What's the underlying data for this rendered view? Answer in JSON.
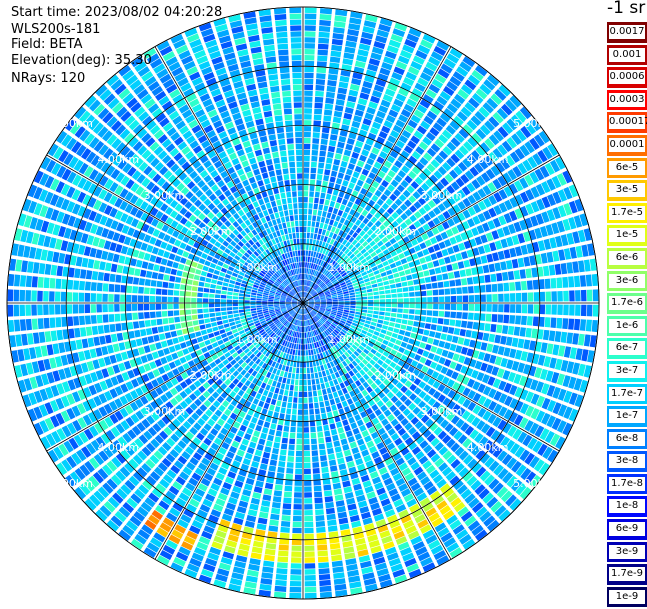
{
  "header": {
    "start_time": "Start time: 2023/08/02 04:20:28",
    "instrument": "WLS200s-181",
    "field": "Field: BETA",
    "elevation": "Elevation(deg): 35.30",
    "nrays": "NRays: 120"
  },
  "colorbar": {
    "unit": "-1 sr",
    "labels": [
      "0.0017",
      "0.001",
      "0.0006",
      "0.0003",
      "0.00017",
      "0.0001",
      "6e-5",
      "3e-5",
      "1.7e-5",
      "1e-5",
      "6e-6",
      "3e-6",
      "1.7e-6",
      "1e-6",
      "6e-7",
      "3e-7",
      "1.7e-7",
      "1e-7",
      "6e-8",
      "3e-8",
      "1.7e-8",
      "1e-8",
      "6e-9",
      "3e-9",
      "1.7e-9",
      "1e-9"
    ],
    "colors": [
      "#800000",
      "#b00000",
      "#d80000",
      "#ff0000",
      "#ff3c00",
      "#ff6e00",
      "#ff9a00",
      "#ffc800",
      "#fff000",
      "#e0ff17",
      "#b8ff40",
      "#90ff68",
      "#6cff8c",
      "#4cffac",
      "#2cffcc",
      "#10f0ee",
      "#00d0ff",
      "#00a8ff",
      "#0080ff",
      "#0058ff",
      "#0030ff",
      "#0008ff",
      "#0000e0",
      "#0000b4",
      "#000088",
      "#000060"
    ]
  },
  "chart_data": {
    "type": "polar-ppi",
    "field": "BETA",
    "unit": "-1 sr",
    "elevation_deg": 35.3,
    "n_rays": 120,
    "range_rings_km": [
      1.0,
      2.0,
      3.0,
      4.0,
      5.0
    ],
    "ring_labels": [
      "1.00km",
      "2.00km",
      "3.00km",
      "4.00km",
      "5.00km"
    ],
    "azimuth_spokes_deg": [
      0,
      30,
      60,
      90,
      120,
      150,
      180,
      210,
      240,
      270,
      300,
      330
    ],
    "max_range_km": 5.0,
    "typical_background": "1e-7 to 3e-7",
    "features": [
      {
        "description": "enhanced backscatter arc near outer range, southeast to south",
        "range_km": [
          3.9,
          4.3
        ],
        "azimuth_deg": [
          140,
          200
        ],
        "value": "1e-5 to 3e-5"
      },
      {
        "description": "arc south-southwest near max range",
        "range_km": [
          4.3,
          4.5
        ],
        "azimuth_deg": [
          205,
          215
        ],
        "value": "3e-5"
      },
      {
        "description": "weaker arc to the west",
        "range_km": [
          1.8,
          2.0
        ],
        "azimuth_deg": [
          255,
          290
        ],
        "value": "3e-6"
      }
    ]
  }
}
